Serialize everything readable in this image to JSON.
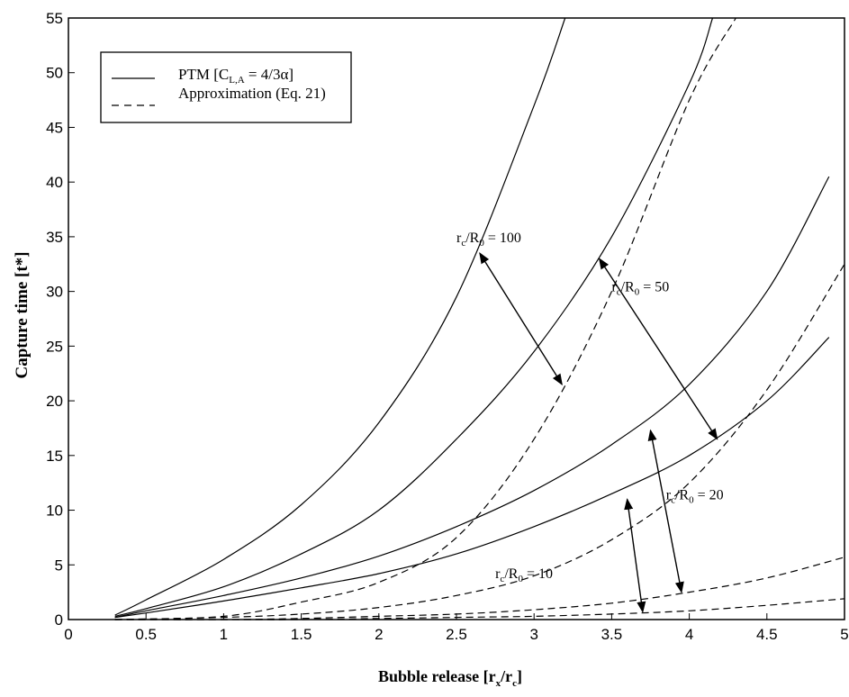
{
  "chart_data": {
    "type": "line",
    "xlabel": "Bubble release [r",
    "xlabel_sub1": "x",
    "xlabel_mid": "/r",
    "xlabel_sub2": "c",
    "xlabel_end": "]",
    "ylabel": "Capture time [t*]",
    "xlim": [
      0,
      5
    ],
    "ylim": [
      0,
      55
    ],
    "xticks": [
      0,
      0.5,
      1,
      1.5,
      2,
      2.5,
      3,
      3.5,
      4,
      4.5,
      5
    ],
    "xtick_labels": [
      "0",
      "0.5",
      "1",
      "1.5",
      "2",
      "2.5",
      "3",
      "3.5",
      "4",
      "4.5",
      "5"
    ],
    "yticks": [
      0,
      5,
      10,
      15,
      20,
      25,
      30,
      35,
      40,
      45,
      50,
      55
    ],
    "ytick_labels": [
      "0",
      "5",
      "10",
      "15",
      "20",
      "25",
      "30",
      "35",
      "40",
      "45",
      "50",
      "55"
    ],
    "grid": false,
    "legend": {
      "position": "top-left",
      "entries": [
        {
          "style": "solid",
          "text": "PTM [C",
          "sub": "L,A",
          "text_end": " = 4/3α]"
        },
        {
          "style": "dashed",
          "text": "Approximation (Eq. 21)"
        }
      ]
    },
    "series": [
      {
        "style": "solid",
        "group": "r_c/R_0 = 100",
        "x": [
          0.3,
          0.5,
          1.0,
          1.5,
          2.0,
          2.5,
          3.0,
          3.2
        ],
        "y": [
          0.4,
          1.8,
          5.5,
          10.5,
          18.0,
          29.5,
          47.0,
          55.0
        ]
      },
      {
        "style": "solid",
        "group": "r_c/R_0 = 50",
        "x": [
          0.3,
          0.5,
          1.0,
          1.5,
          2.0,
          2.5,
          3.0,
          3.5,
          4.0,
          4.15
        ],
        "y": [
          0.3,
          1.0,
          3.0,
          6.0,
          10.0,
          16.5,
          24.5,
          35.0,
          49.0,
          55.0
        ]
      },
      {
        "style": "solid",
        "group": "r_c/R_0 = 20",
        "x": [
          0.3,
          0.5,
          1.0,
          1.5,
          2.0,
          2.5,
          3.0,
          3.5,
          4.0,
          4.5,
          4.9
        ],
        "y": [
          0.2,
          0.8,
          2.2,
          3.8,
          5.8,
          8.5,
          11.8,
          16.0,
          21.5,
          30.0,
          40.5
        ]
      },
      {
        "style": "solid",
        "group": "r_c/R_0 = 10",
        "x": [
          0.3,
          0.5,
          1.0,
          1.5,
          2.0,
          2.5,
          3.0,
          3.5,
          4.0,
          4.5,
          4.9
        ],
        "y": [
          0.2,
          0.6,
          1.7,
          2.9,
          4.2,
          6.0,
          8.5,
          11.5,
          15.0,
          20.0,
          25.8
        ]
      },
      {
        "style": "dashed",
        "group": "r_c/R_0 = 100",
        "x": [
          0.3,
          1.0,
          1.5,
          2.0,
          2.5,
          3.0,
          3.5,
          4.0,
          4.3
        ],
        "y": [
          0.0,
          0.3,
          1.6,
          3.4,
          7.5,
          16.5,
          30.0,
          47.5,
          55.0
        ]
      },
      {
        "style": "dashed",
        "group": "r_c/R_0 = 50",
        "x": [
          0.3,
          1.0,
          1.5,
          2.0,
          2.5,
          3.0,
          3.5,
          4.0,
          4.5,
          5.0
        ],
        "y": [
          0.0,
          0.2,
          0.5,
          1.1,
          2.2,
          4.0,
          7.3,
          12.5,
          21.0,
          32.5
        ]
      },
      {
        "style": "dashed",
        "group": "r_c/R_0 = 20",
        "x": [
          0.3,
          1.0,
          1.5,
          2.0,
          2.5,
          3.0,
          3.5,
          4.0,
          4.5,
          5.0
        ],
        "y": [
          0.0,
          0.0,
          0.1,
          0.3,
          0.5,
          0.9,
          1.5,
          2.5,
          3.8,
          5.7
        ]
      },
      {
        "style": "dashed",
        "group": "r_c/R_0 = 10",
        "x": [
          0.3,
          1.0,
          1.5,
          2.0,
          2.5,
          3.0,
          3.5,
          4.0,
          4.5,
          5.0
        ],
        "y": [
          0.0,
          0.0,
          0.0,
          0.1,
          0.2,
          0.3,
          0.5,
          0.8,
          1.3,
          1.9
        ]
      }
    ],
    "annotations": [
      {
        "text": "r",
        "sub": "c",
        "text_end": "/R",
        "sub2": "0",
        "tail": " = 100",
        "x": 2.5,
        "y": 34.5,
        "arrow": [
          [
            2.65,
            33.5
          ],
          [
            3.18,
            21.5
          ]
        ]
      },
      {
        "text": "r",
        "sub": "c",
        "text_end": "/R",
        "sub2": "0",
        "tail": " = 50",
        "x": 3.5,
        "y": 30.0,
        "arrow": [
          [
            3.42,
            33.0
          ],
          [
            4.18,
            16.5
          ]
        ]
      },
      {
        "text": "r",
        "sub": "c",
        "text_end": "/R",
        "sub2": "0",
        "tail": " = 20",
        "x": 3.85,
        "y": 11.0,
        "arrow": [
          [
            3.75,
            17.3
          ],
          [
            3.95,
            2.5
          ]
        ]
      },
      {
        "text": "r",
        "sub": "c",
        "text_end": "/R",
        "sub2": "0",
        "tail": " = 10",
        "x": 2.75,
        "y": 3.8,
        "arrow": [
          [
            3.6,
            11.0
          ],
          [
            3.7,
            0.7
          ]
        ]
      }
    ]
  }
}
